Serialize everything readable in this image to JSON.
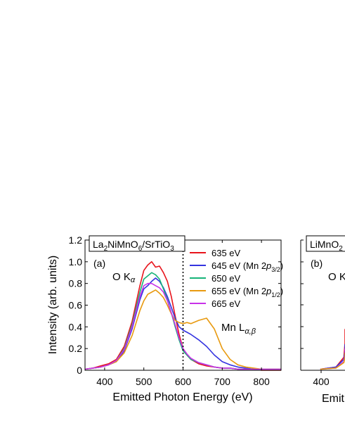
{
  "chart_data": [
    {
      "panel": "(a)",
      "type": "line",
      "title": "La2NiMnO6/SrTiO3",
      "title_parts": {
        "a": "La",
        "s1": "2",
        "b": "NiMnO",
        "s2": "6",
        "c": "/SrTiO",
        "s3": "3"
      },
      "xlabel": "Emitted Photon Energy (eV)",
      "ylabel": "Intensity (arb. units)",
      "xlim": [
        350,
        850
      ],
      "ylim": [
        0,
        1.2
      ],
      "xticks": [
        400,
        500,
        600,
        700,
        800
      ],
      "yticks": [
        "0",
        "0.2",
        "0.4",
        "0.6",
        "0.8",
        "1.0",
        "1.2"
      ],
      "grid": false,
      "legend_position": "top-right",
      "annotations": {
        "o_k": "O K",
        "o_k_sub": "α",
        "mn_l": "Mn L",
        "mn_l_sub": "α,β",
        "dotted_line_x": 600
      },
      "series": [
        {
          "name": "635 eV",
          "color": "#e8141c",
          "x": [
            350,
            370,
            390,
            410,
            430,
            450,
            470,
            490,
            500,
            510,
            520,
            530,
            540,
            550,
            560,
            570,
            580,
            590,
            600,
            610,
            620,
            640,
            660,
            680,
            700,
            720,
            740,
            760,
            780,
            800,
            820,
            850
          ],
          "y": [
            0.01,
            0.02,
            0.04,
            0.06,
            0.1,
            0.22,
            0.45,
            0.78,
            0.92,
            0.97,
            1.0,
            0.95,
            0.96,
            0.9,
            0.82,
            0.68,
            0.5,
            0.33,
            0.2,
            0.14,
            0.1,
            0.06,
            0.04,
            0.03,
            0.02,
            0.02,
            0.01,
            0.01,
            0.01,
            0.0,
            0.0,
            0.0
          ]
        },
        {
          "name": "645 eV (Mn 2p3/2)",
          "label_parts": {
            "a": "645 eV (Mn 2",
            "i": "p",
            "s": "3/2",
            "b": ")"
          },
          "color": "#3434e0",
          "x": [
            350,
            370,
            390,
            410,
            430,
            450,
            470,
            490,
            500,
            510,
            520,
            530,
            540,
            550,
            560,
            570,
            580,
            590,
            600,
            610,
            620,
            640,
            660,
            680,
            700,
            720,
            740,
            760,
            780,
            800,
            820,
            850
          ],
          "y": [
            0.01,
            0.02,
            0.03,
            0.05,
            0.08,
            0.18,
            0.38,
            0.65,
            0.75,
            0.78,
            0.82,
            0.85,
            0.82,
            0.76,
            0.68,
            0.58,
            0.48,
            0.4,
            0.37,
            0.35,
            0.33,
            0.28,
            0.22,
            0.14,
            0.08,
            0.05,
            0.03,
            0.02,
            0.01,
            0.01,
            0.01,
            0.01
          ]
        },
        {
          "name": "650 eV",
          "color": "#17b378",
          "x": [
            350,
            370,
            390,
            410,
            430,
            450,
            470,
            490,
            500,
            510,
            520,
            530,
            540,
            550,
            560,
            570,
            580,
            590,
            600,
            610,
            620,
            640,
            660,
            680,
            700,
            720,
            740,
            760,
            780,
            800,
            820,
            850
          ],
          "y": [
            0.01,
            0.02,
            0.03,
            0.05,
            0.09,
            0.2,
            0.42,
            0.72,
            0.84,
            0.87,
            0.9,
            0.88,
            0.84,
            0.75,
            0.65,
            0.53,
            0.4,
            0.28,
            0.18,
            0.14,
            0.1,
            0.07,
            0.05,
            0.03,
            0.02,
            0.02,
            0.01,
            0.01,
            0.01,
            0.01,
            0.01,
            0.01
          ]
        },
        {
          "name": "655 eV (Mn 2p1/2)",
          "label_parts": {
            "a": "655 eV (Mn 2",
            "i": "p",
            "s": "1/2",
            "b": ")"
          },
          "color": "#e89a10",
          "x": [
            350,
            370,
            390,
            410,
            430,
            450,
            470,
            490,
            500,
            510,
            520,
            530,
            540,
            550,
            560,
            570,
            580,
            590,
            600,
            610,
            620,
            640,
            660,
            680,
            700,
            720,
            740,
            760,
            780,
            800,
            820,
            850
          ],
          "y": [
            0.01,
            0.02,
            0.03,
            0.05,
            0.08,
            0.16,
            0.32,
            0.55,
            0.64,
            0.7,
            0.72,
            0.74,
            0.71,
            0.67,
            0.6,
            0.52,
            0.46,
            0.44,
            0.43,
            0.44,
            0.43,
            0.46,
            0.48,
            0.38,
            0.2,
            0.1,
            0.05,
            0.03,
            0.02,
            0.01,
            0.01,
            0.01
          ]
        },
        {
          "name": "665 eV",
          "color": "#c832e8",
          "x": [
            350,
            370,
            390,
            410,
            430,
            450,
            470,
            490,
            500,
            510,
            520,
            530,
            540,
            550,
            560,
            570,
            580,
            590,
            600,
            610,
            620,
            640,
            660,
            680,
            700,
            720,
            740,
            760,
            780,
            800,
            820,
            850
          ],
          "y": [
            0.01,
            0.02,
            0.03,
            0.05,
            0.09,
            0.19,
            0.4,
            0.68,
            0.78,
            0.8,
            0.8,
            0.78,
            0.76,
            0.72,
            0.64,
            0.53,
            0.42,
            0.3,
            0.2,
            0.15,
            0.11,
            0.07,
            0.05,
            0.03,
            0.02,
            0.02,
            0.01,
            0.01,
            0.01,
            0.01,
            0.01,
            0.01
          ]
        }
      ]
    },
    {
      "panel": "(b)",
      "type": "line",
      "title": "LiMnO2",
      "title_parts": {
        "a": "LiMnO",
        "s1": "2"
      },
      "xlabel_visible": "Emit",
      "xticks": [
        400
      ],
      "annotations": {
        "o_k_visible": "O K"
      },
      "series": [
        {
          "color": "#e8141c",
          "x": [
            400,
            440,
            460,
            470,
            480
          ],
          "y": [
            0.01,
            0.03,
            0.12,
            0.25,
            0.38
          ]
        },
        {
          "color": "#3434e0",
          "x": [
            400,
            440,
            460,
            470,
            480
          ],
          "y": [
            0.01,
            0.03,
            0.1,
            0.18,
            0.24
          ]
        },
        {
          "color": "#c832e8",
          "x": [
            400,
            440,
            460,
            470,
            480
          ],
          "y": [
            0.01,
            0.02,
            0.08,
            0.14,
            0.2
          ]
        },
        {
          "color": "#e89a10",
          "x": [
            400,
            440,
            460,
            470,
            480
          ],
          "y": [
            0.01,
            0.02,
            0.07,
            0.12,
            0.16
          ]
        }
      ]
    }
  ]
}
